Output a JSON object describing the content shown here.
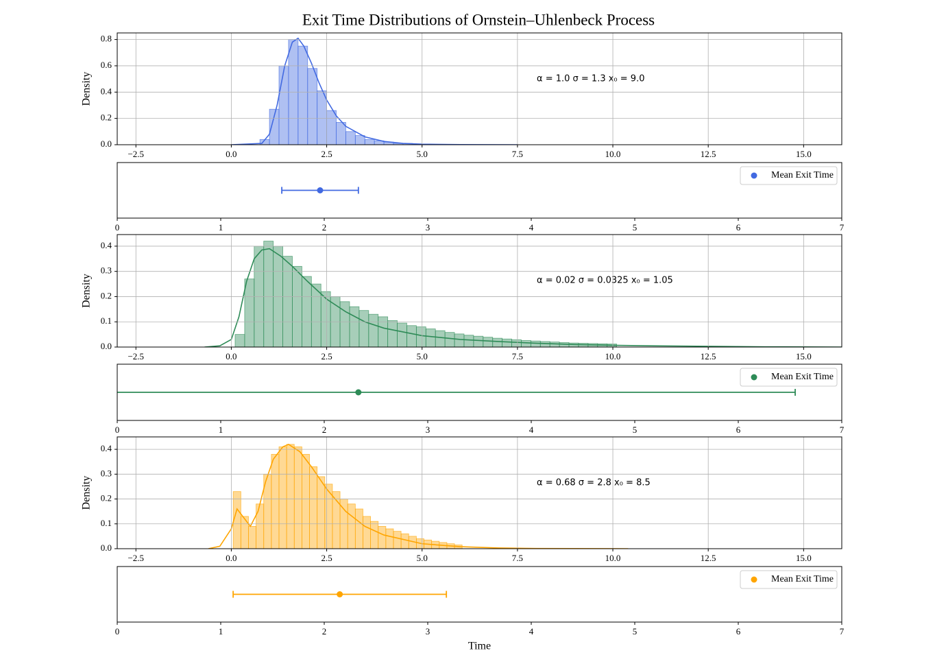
{
  "title": "Exit Time Distributions of Ornstein–Uhlenbeck Process",
  "chart_data": [
    {
      "type": "histogram",
      "color": "#4169e1",
      "ylabel": "Density",
      "annotation": "α = 1.0  σ = 1.3  x₀ = 9.0",
      "grid": true,
      "bins": [
        0.75,
        1.0,
        1.25,
        1.5,
        1.75,
        2.0,
        2.25,
        2.5,
        2.75,
        3.0,
        3.25,
        3.5,
        3.75,
        4.0,
        4.25,
        4.5,
        4.75,
        5.0
      ],
      "values": [
        0.04,
        0.27,
        0.6,
        0.8,
        0.75,
        0.58,
        0.41,
        0.26,
        0.17,
        0.1,
        0.07,
        0.04,
        0.03,
        0.02,
        0.01,
        0.01,
        0.005
      ],
      "kde": {
        "x": [
          0,
          0.8,
          1.0,
          1.2,
          1.4,
          1.6,
          1.75,
          1.9,
          2.1,
          2.3,
          2.5,
          2.75,
          3.0,
          3.5,
          4.0,
          4.5,
          5.0,
          6.0,
          7.5
        ],
        "values": [
          0,
          0.01,
          0.08,
          0.3,
          0.6,
          0.78,
          0.81,
          0.75,
          0.62,
          0.47,
          0.34,
          0.22,
          0.14,
          0.06,
          0.025,
          0.01,
          0.004,
          0.001,
          0
        ]
      },
      "xlim": [
        -2.99,
        16.0
      ],
      "xticks": [
        {
          "value": -2.5,
          "label": "−2.5"
        },
        {
          "value": 0,
          "label": "0.0"
        },
        {
          "value": 2.5,
          "label": "2.5"
        },
        {
          "value": 5,
          "label": "5.0"
        },
        {
          "value": 7.5,
          "label": "7.5"
        },
        {
          "value": 10,
          "label": "10.0"
        },
        {
          "value": 12.5,
          "label": "12.5"
        },
        {
          "value": 15,
          "label": "15.0"
        }
      ],
      "ylim": [
        0,
        0.85
      ],
      "yticks": [
        {
          "value": 0,
          "label": "0.0"
        },
        0.2,
        0.4,
        0.6,
        0.8
      ]
    },
    {
      "type": "errorbar",
      "name": "Mean Exit Time",
      "color": "#4169e1",
      "mean": 1.96,
      "xerr": 0.37,
      "legend": "upper right",
      "grid": false,
      "xlim": [
        0,
        7
      ],
      "xticks": [
        0,
        1,
        2,
        3,
        4,
        5,
        6,
        7
      ]
    },
    {
      "type": "histogram",
      "color": "#2e8b57",
      "ylabel": "Density",
      "annotation": "α = 0.02  σ = 0.0325  x₀ = 1.05",
      "grid": true,
      "bins": [
        0.1,
        0.35,
        0.6,
        0.85,
        1.1,
        1.35,
        1.6,
        1.85,
        2.1,
        2.35,
        2.6,
        2.85,
        3.1,
        3.35,
        3.6,
        3.85,
        4.1,
        4.35,
        4.6,
        4.85,
        5.1,
        5.35,
        5.6,
        5.85,
        6.1,
        6.35,
        6.6,
        6.85,
        7.1,
        7.35,
        7.6,
        7.85,
        8.1,
        8.35,
        8.6,
        8.85,
        9.1,
        9.35,
        9.6,
        9.85,
        10.1
      ],
      "values": [
        0.05,
        0.27,
        0.4,
        0.42,
        0.4,
        0.36,
        0.32,
        0.28,
        0.25,
        0.22,
        0.2,
        0.18,
        0.16,
        0.145,
        0.13,
        0.12,
        0.105,
        0.095,
        0.085,
        0.08,
        0.072,
        0.065,
        0.058,
        0.052,
        0.047,
        0.043,
        0.039,
        0.035,
        0.032,
        0.029,
        0.026,
        0.024,
        0.022,
        0.02,
        0.018,
        0.016,
        0.015,
        0.014,
        0.013,
        0.012
      ],
      "kde": {
        "x": [
          -0.7,
          -0.3,
          0,
          0.2,
          0.4,
          0.6,
          0.8,
          1.0,
          1.3,
          1.6,
          2.0,
          2.5,
          3.0,
          3.5,
          4.0,
          5.0,
          6.0,
          7.0,
          8.0,
          9.0,
          10.0,
          11.0,
          12.5,
          14.0,
          16.0
        ],
        "values": [
          0,
          0.005,
          0.03,
          0.12,
          0.26,
          0.35,
          0.385,
          0.39,
          0.36,
          0.32,
          0.26,
          0.19,
          0.14,
          0.1,
          0.075,
          0.045,
          0.03,
          0.022,
          0.015,
          0.01,
          0.007,
          0.005,
          0.003,
          0.001,
          0
        ]
      },
      "xlim": [
        -2.99,
        16.0
      ],
      "xticks": [
        {
          "value": -2.5,
          "label": "−2.5"
        },
        {
          "value": 0,
          "label": "0.0"
        },
        {
          "value": 2.5,
          "label": "2.5"
        },
        {
          "value": 5,
          "label": "5.0"
        },
        {
          "value": 7.5,
          "label": "7.5"
        },
        {
          "value": 10,
          "label": "10.0"
        },
        {
          "value": 12.5,
          "label": "12.5"
        },
        {
          "value": 15,
          "label": "15.0"
        }
      ],
      "ylim": [
        0,
        0.446
      ],
      "yticks": [
        {
          "value": 0,
          "label": "0.0"
        },
        0.1,
        0.2,
        0.3,
        0.4
      ]
    },
    {
      "type": "errorbar",
      "name": "Mean Exit Time",
      "color": "#2e8b57",
      "mean": 2.33,
      "xerr": 4.22,
      "legend": "upper right",
      "grid": false,
      "xlim": [
        0,
        7
      ],
      "xticks": [
        0,
        1,
        2,
        3,
        4,
        5,
        6,
        7
      ]
    },
    {
      "type": "histogram",
      "color": "#ffa500",
      "ylabel": "Density",
      "annotation": "α = 0.68  σ = 2.8  x₀ = 8.5",
      "grid": true,
      "bins": [
        0.05,
        0.25,
        0.45,
        0.65,
        0.85,
        1.05,
        1.25,
        1.45,
        1.65,
        1.85,
        2.05,
        2.25,
        2.45,
        2.65,
        2.85,
        3.05,
        3.25,
        3.45,
        3.65,
        3.85,
        4.05,
        4.25,
        4.45,
        4.65,
        4.85,
        5.05,
        5.25,
        5.45,
        5.65,
        5.85,
        6.05
      ],
      "values": [
        0.23,
        0.13,
        0.09,
        0.18,
        0.3,
        0.38,
        0.41,
        0.42,
        0.41,
        0.38,
        0.33,
        0.29,
        0.26,
        0.23,
        0.2,
        0.18,
        0.16,
        0.13,
        0.11,
        0.09,
        0.08,
        0.07,
        0.06,
        0.05,
        0.04,
        0.035,
        0.03,
        0.025,
        0.02,
        0.015
      ],
      "kde": {
        "x": [
          -0.6,
          -0.3,
          0,
          0.15,
          0.3,
          0.5,
          0.7,
          0.9,
          1.1,
          1.35,
          1.5,
          1.8,
          2.1,
          2.5,
          3.0,
          3.5,
          4.0,
          5.0,
          6.0,
          7.0,
          8.0,
          10.4
        ],
        "values": [
          0,
          0.01,
          0.08,
          0.16,
          0.13,
          0.09,
          0.15,
          0.27,
          0.36,
          0.41,
          0.42,
          0.39,
          0.33,
          0.24,
          0.15,
          0.09,
          0.055,
          0.02,
          0.008,
          0.003,
          0.001,
          0
        ]
      },
      "xlim": [
        -2.99,
        16.0
      ],
      "xticks": [
        {
          "value": -2.5,
          "label": "−2.5"
        },
        {
          "value": 0,
          "label": "0.0"
        },
        {
          "value": 2.5,
          "label": "2.5"
        },
        {
          "value": 5,
          "label": "5.0"
        },
        {
          "value": 7.5,
          "label": "7.5"
        },
        {
          "value": 10,
          "label": "10.0"
        },
        {
          "value": 12.5,
          "label": "12.5"
        },
        {
          "value": 15,
          "label": "15.0"
        }
      ],
      "ylim": [
        0,
        0.45
      ],
      "yticks": [
        {
          "value": 0,
          "label": "0.0"
        },
        0.1,
        0.2,
        0.3,
        0.4
      ]
    },
    {
      "type": "errorbar",
      "name": "Mean Exit Time",
      "color": "#ffa500",
      "mean": 2.15,
      "xerr": 1.03,
      "legend": "upper right",
      "grid": false,
      "xlabel": "Time",
      "xlim": [
        0,
        7
      ],
      "xticks": [
        0,
        1,
        2,
        3,
        4,
        5,
        6,
        7
      ]
    }
  ]
}
